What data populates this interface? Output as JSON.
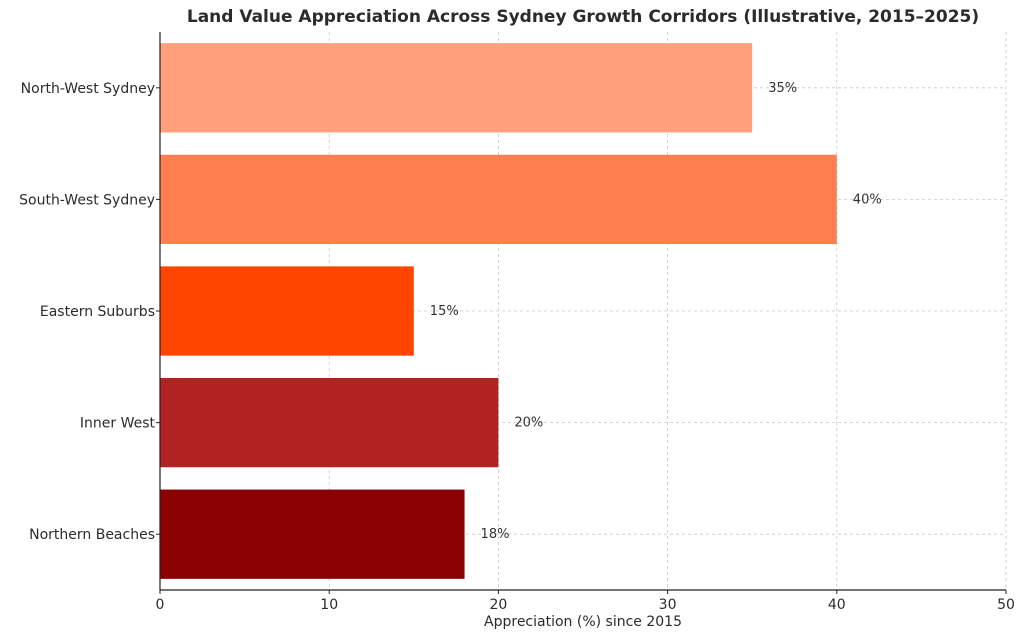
{
  "chart_data": {
    "type": "bar",
    "orientation": "horizontal",
    "title": "Land Value Appreciation Across Sydney Growth Corridors (Illustrative, 2015–2025)",
    "xlabel": "Appreciation (%) since 2015",
    "ylabel": "",
    "xlim": [
      0,
      50
    ],
    "xticks": [
      0,
      10,
      20,
      30,
      40,
      50
    ],
    "grid": true,
    "categories": [
      "North-West Sydney",
      "South-West Sydney",
      "Eastern Suburbs",
      "Inner West",
      "Northern Beaches"
    ],
    "values": [
      35,
      40,
      15,
      20,
      18
    ],
    "value_labels": [
      "35%",
      "40%",
      "15%",
      "20%",
      "18%"
    ],
    "colors": [
      "#FFA07A",
      "#FF7F50",
      "#FF4500",
      "#B22222",
      "#8B0000"
    ]
  }
}
